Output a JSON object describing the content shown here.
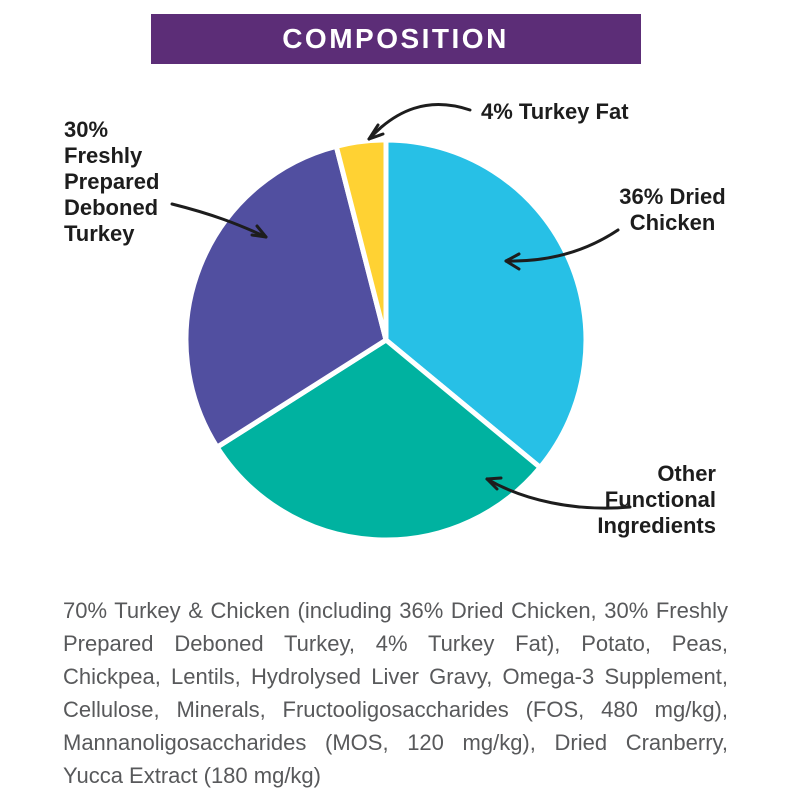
{
  "header": {
    "title": "COMPOSITION",
    "bg_color": "#5C2D77",
    "text_color": "#FFFFFF"
  },
  "chart_data": {
    "type": "pie",
    "title": "COMPOSITION",
    "direction": "clockwise",
    "start_angle_deg": 0,
    "separator_color": "#FFFFFF",
    "slices": [
      {
        "label": "36% Dried Chicken",
        "value": 36,
        "color": "#27C0E6"
      },
      {
        "label": "Other Functional Ingredients",
        "value": 30,
        "color": "#00B2A0"
      },
      {
        "label": "30% Freshly Prepared Deboned Turkey",
        "value": 30,
        "color": "#514FA0"
      },
      {
        "label": "4% Turkey Fat",
        "value": 4,
        "color": "#FFD233"
      }
    ]
  },
  "callouts": {
    "turkey_fat": "4% Turkey Fat",
    "deboned_turkey": "30% Freshly Prepared Deboned Turkey",
    "dried_chicken": "36% Dried Chicken",
    "other_ingredients": "Other Functional Ingredients"
  },
  "description": "70% Turkey & Chicken (including 36% Dried Chicken, 30% Freshly Prepared Deboned Turkey, 4% Turkey Fat), Potato, Peas, Chickpea, Lentils, Hydrolysed Liver Gravy, Omega-3 Supplement, Cellulose, Minerals, Fructooligosaccharides (FOS, 480 mg/kg), Mannanoligosaccharides (MOS, 120 mg/kg), Dried Cranberry, Yucca Extract (180 mg/kg)"
}
